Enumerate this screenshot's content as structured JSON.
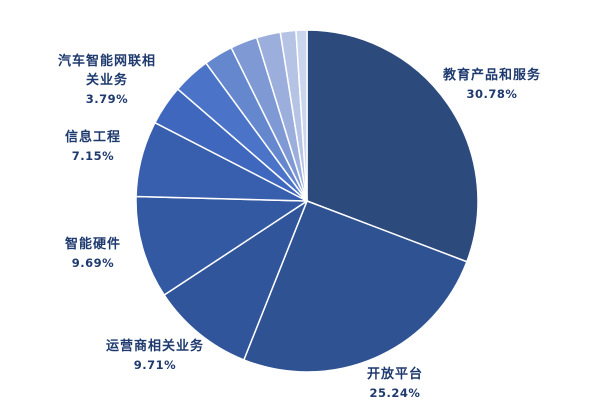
{
  "chart_data": {
    "type": "pie",
    "slices": [
      {
        "label": "教育产品和服务",
        "value": 30.78,
        "value_label": "30.78%",
        "color": "#2D4A7D"
      },
      {
        "label": "开放平台",
        "value": 25.24,
        "value_label": "25.24%",
        "color": "#2F5292"
      },
      {
        "label": "运营商相关业务",
        "value": 9.71,
        "value_label": "9.71%",
        "color": "#31559A"
      },
      {
        "label": "智能硬件",
        "value": 9.69,
        "value_label": "9.69%",
        "color": "#3459A3"
      },
      {
        "label": "信息工程",
        "value": 7.15,
        "value_label": "7.15%",
        "color": "#385FAE"
      },
      {
        "label": "汽车智能网联相关业务",
        "value": 3.79,
        "value_label": "3.79%",
        "color": "#3F67BD"
      },
      {
        "value": 3.58,
        "color": "#4B74C9"
      },
      {
        "value": 2.75,
        "color": "#6587CE"
      },
      {
        "value": 2.56,
        "color": "#7F99D5"
      },
      {
        "value": 2.25,
        "color": "#9BAEDC"
      },
      {
        "value": 1.47,
        "color": "#B5C3E5"
      },
      {
        "value": 1.03,
        "color": "#CAD5EE"
      }
    ]
  },
  "colors": {
    "label_text": "#1F3A6E",
    "slice_border": "#FFFFFF"
  }
}
